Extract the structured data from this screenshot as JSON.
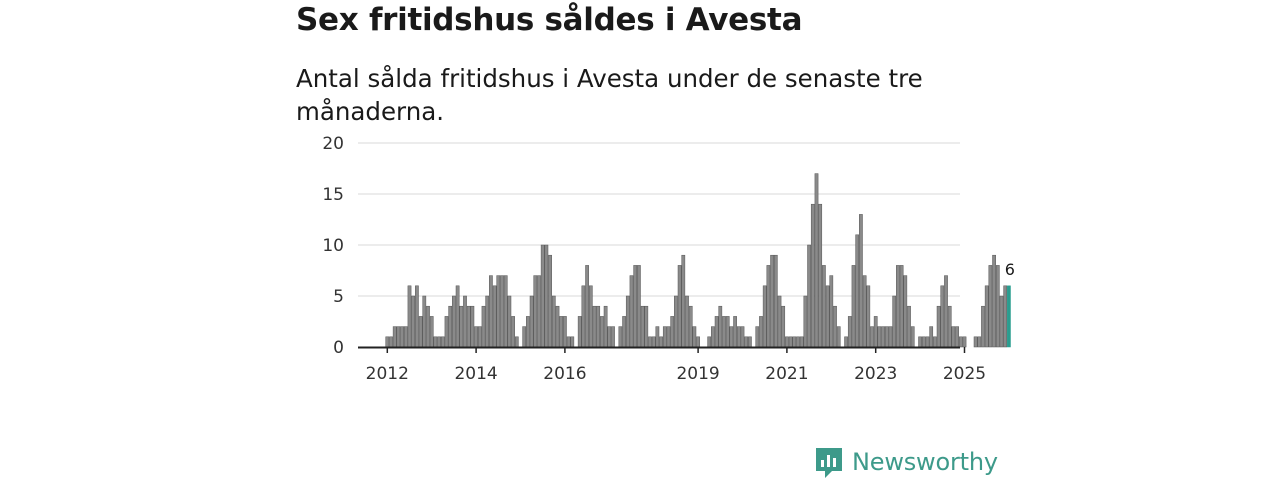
{
  "title": "Sex fritidshus såldes i Avesta",
  "subtitle": "Antal sålda fritidshus i Avesta under de senaste tre månaderna.",
  "brand": {
    "name": "Newsworthy",
    "icon": "newsworthy-logo-icon"
  },
  "colors": {
    "bar": "#8a8a8a",
    "bar_outline": "#555555",
    "highlight": "#2a9d8f",
    "grid": "#d8d8d8",
    "axis": "#222222"
  },
  "chart_data": {
    "type": "bar",
    "title": "Sex fritidshus såldes i Avesta",
    "subtitle": "Antal sålda fritidshus i Avesta under de senaste tre månaderna.",
    "xlabel": "",
    "ylabel": "",
    "ylim": [
      0,
      20
    ],
    "yticks": [
      "0",
      "5",
      "10",
      "15",
      "20"
    ],
    "grid": true,
    "x_start": "2012-01",
    "frequency": "monthly (rolling three-month sum)",
    "xticks": [
      {
        "label": "2012",
        "index": 0
      },
      {
        "label": "2014",
        "index": 24
      },
      {
        "label": "2016",
        "index": 48
      },
      {
        "label": "2019",
        "index": 84
      },
      {
        "label": "2021",
        "index": 108
      },
      {
        "label": "2023",
        "index": 132
      },
      {
        "label": "2025",
        "index": 156
      }
    ],
    "values": [
      1,
      1,
      2,
      2,
      2,
      2,
      6,
      5,
      6,
      3,
      5,
      4,
      3,
      1,
      1,
      1,
      3,
      4,
      5,
      6,
      4,
      5,
      4,
      4,
      2,
      2,
      4,
      5,
      7,
      6,
      7,
      7,
      7,
      5,
      3,
      1,
      0,
      2,
      3,
      5,
      7,
      7,
      10,
      10,
      9,
      5,
      4,
      3,
      3,
      1,
      1,
      0,
      3,
      6,
      8,
      6,
      4,
      4,
      3,
      4,
      2,
      2,
      0,
      2,
      3,
      5,
      7,
      8,
      8,
      4,
      4,
      1,
      1,
      2,
      1,
      2,
      2,
      3,
      5,
      8,
      9,
      5,
      4,
      2,
      1,
      0,
      0,
      1,
      2,
      3,
      4,
      3,
      3,
      2,
      3,
      2,
      2,
      1,
      1,
      0,
      2,
      3,
      6,
      8,
      9,
      9,
      5,
      4,
      1,
      1,
      1,
      1,
      1,
      5,
      10,
      14,
      17,
      14,
      8,
      6,
      7,
      4,
      2,
      0,
      1,
      3,
      8,
      11,
      13,
      7,
      6,
      2,
      3,
      2,
      2,
      2,
      2,
      5,
      8,
      8,
      7,
      4,
      2,
      0,
      1,
      1,
      1,
      2,
      1,
      4,
      6,
      7,
      4,
      2,
      2,
      1,
      1,
      0,
      0,
      1,
      1,
      4,
      6,
      8,
      9,
      8,
      5,
      6,
      6
    ],
    "highlight_last": true,
    "last_value_label": "6"
  }
}
